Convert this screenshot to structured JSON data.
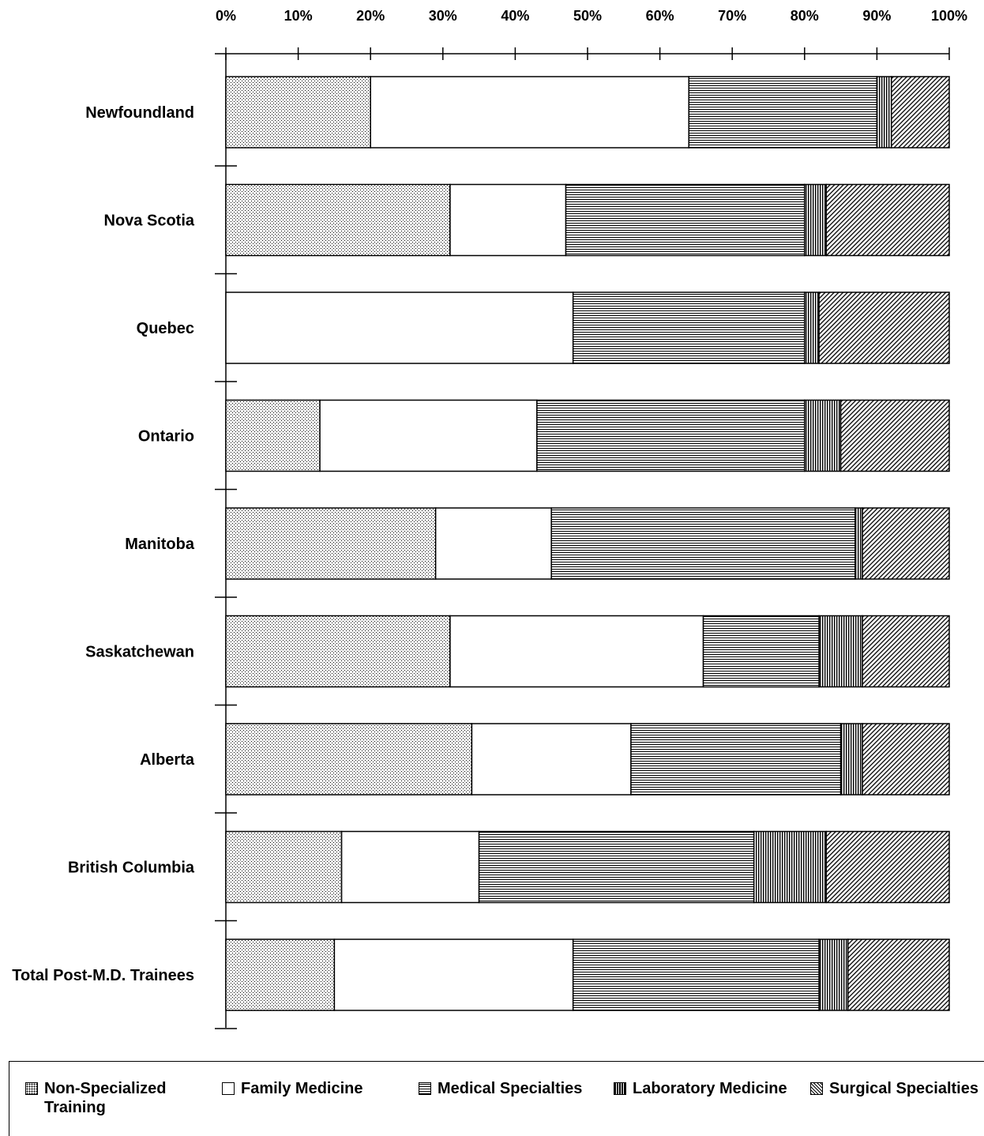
{
  "chart_data": {
    "type": "bar",
    "orientation": "horizontal",
    "stacked": "percent",
    "xlim": [
      0,
      100
    ],
    "x_ticks": [
      "0%",
      "10%",
      "20%",
      "30%",
      "40%",
      "50%",
      "60%",
      "70%",
      "80%",
      "90%",
      "100%"
    ],
    "categories": [
      "Newfoundland",
      "Nova Scotia",
      "Quebec",
      "Ontario",
      "Manitoba",
      "Saskatchewan",
      "Alberta",
      "British Columbia",
      "Total Post-M.D. Trainees"
    ],
    "series": [
      {
        "name": "Non-Specialized Training",
        "pattern": "stipple",
        "values": [
          20,
          31,
          0,
          13,
          29,
          31,
          34,
          16,
          15
        ]
      },
      {
        "name": "Family Medicine",
        "pattern": "empty",
        "values": [
          44,
          16,
          48,
          30,
          16,
          35,
          22,
          19,
          33
        ]
      },
      {
        "name": "Medical Specialties",
        "pattern": "horizontal-lines",
        "values": [
          26,
          33,
          32,
          37,
          42,
          16,
          29,
          38,
          34
        ]
      },
      {
        "name": "Laboratory Medicine",
        "pattern": "vertical-lines",
        "values": [
          2,
          3,
          2,
          5,
          1,
          6,
          3,
          10,
          4
        ]
      },
      {
        "name": "Surgical Specialties",
        "pattern": "diagonal-lines",
        "values": [
          8,
          17,
          18,
          15,
          12,
          12,
          12,
          17,
          14
        ]
      }
    ],
    "legend_position": "bottom",
    "grid": false,
    "colors": {
      "ink": "#000000",
      "background": "#ffffff"
    }
  },
  "legend": {
    "items": [
      {
        "label_line1": "Non-Specialized",
        "label_line2": "Training"
      },
      {
        "label_line1": "Family Medicine",
        "label_line2": ""
      },
      {
        "label_line1": "Medical Specialties",
        "label_line2": ""
      },
      {
        "label_line1": "Laboratory Medicine",
        "label_line2": ""
      },
      {
        "label_line1": "Surgical Specialties",
        "label_line2": ""
      }
    ]
  }
}
